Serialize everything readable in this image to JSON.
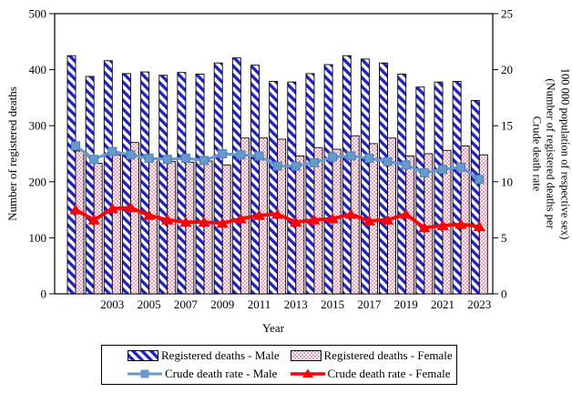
{
  "figure": {
    "xlabel": "Year",
    "ylabel_left": "Number of registered deaths",
    "ylabel_right_lines": {
      "line1": "Crude death rate",
      "line2": "(Number of registered deaths per",
      "line3": "100 000 population of respective sex)"
    }
  },
  "chart_data": {
    "type": "bar",
    "subtype": "grouped-bars-with-overlaid-lines",
    "x": [
      2001,
      2002,
      2003,
      2004,
      2005,
      2006,
      2007,
      2008,
      2009,
      2010,
      2011,
      2012,
      2013,
      2014,
      2015,
      2016,
      2017,
      2018,
      2019,
      2020,
      2021,
      2022,
      2023
    ],
    "x_tick_labels": [
      "2003",
      "2005",
      "2007",
      "2009",
      "2011",
      "2013",
      "2015",
      "2017",
      "2019",
      "2021",
      "2023"
    ],
    "series": [
      {
        "name": "Registered deaths - Male",
        "type": "bar",
        "axis": "left",
        "values": [
          425,
          388,
          416,
          393,
          396,
          390,
          395,
          392,
          412,
          421,
          408,
          379,
          378,
          393,
          409,
          425,
          419,
          412,
          392,
          369,
          378,
          379,
          345
        ]
      },
      {
        "name": "Registered deaths - Female",
        "type": "bar",
        "axis": "left",
        "values": [
          255,
          233,
          248,
          270,
          240,
          236,
          235,
          237,
          230,
          278,
          278,
          276,
          246,
          261,
          258,
          282,
          268,
          278,
          246,
          250,
          256,
          264,
          248
        ]
      },
      {
        "name": "Crude death rate - Male",
        "type": "line",
        "axis": "right",
        "values": [
          13.2,
          12.0,
          12.7,
          12.4,
          12.1,
          12.0,
          12.1,
          11.9,
          12.5,
          12.4,
          12.3,
          11.4,
          11.4,
          11.7,
          12.2,
          12.3,
          12.1,
          11.8,
          11.5,
          10.8,
          11.1,
          11.3,
          10.2
        ]
      },
      {
        "name": "Crude death rate - Female",
        "type": "line",
        "axis": "right",
        "values": [
          7.5,
          6.6,
          7.6,
          7.7,
          7.0,
          6.6,
          6.4,
          6.4,
          6.3,
          6.7,
          7.0,
          7.1,
          6.4,
          6.6,
          6.7,
          7.1,
          6.5,
          6.6,
          7.1,
          5.9,
          6.1,
          6.2,
          6.0
        ]
      }
    ],
    "title": "",
    "xlabel": "Year",
    "ylabel_left": "Number of registered deaths",
    "ylabel_right": "Crude death rate (Number of registered deaths per 100 000 population of respective sex)",
    "ylim_left": [
      0,
      500
    ],
    "ylim_right": [
      0,
      25
    ],
    "y_left_ticks": [
      "0",
      "100",
      "200",
      "300",
      "400",
      "500"
    ],
    "y_right_ticks": [
      "0",
      "5",
      "10",
      "15",
      "20",
      "25"
    ],
    "grid": false,
    "legend_position": "bottom"
  },
  "legend": {
    "items": [
      {
        "label": "Registered deaths - Male",
        "swatch": "blue-diagonal-hatch-bar"
      },
      {
        "label": "Registered deaths - Female",
        "swatch": "pink-dotted-bar"
      },
      {
        "label": "Crude death rate - Male",
        "swatch": "blue-line-square-marker"
      },
      {
        "label": "Crude death rate - Female",
        "swatch": "red-line-triangle-marker"
      }
    ]
  },
  "colors": {
    "male_bar_hatch": "#2121CC",
    "female_bar_dots": "#F59BB8",
    "line_male": "#6699CC",
    "line_male_edge": "#4F7FB5",
    "line_female": "#FF0000",
    "axis": "#000000",
    "background": "#FFFFFF"
  }
}
